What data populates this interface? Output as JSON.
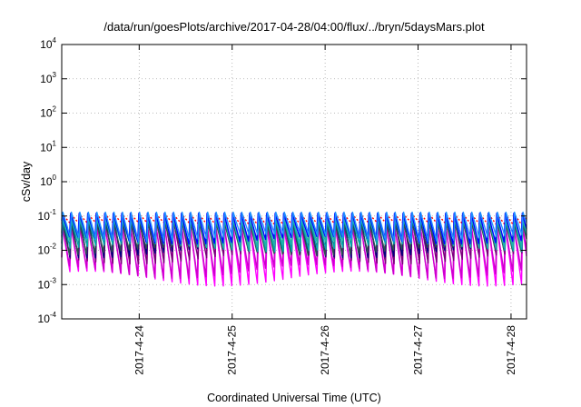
{
  "chart_data": {
    "type": "line",
    "title": "/data/run/goesPlots/archive/2017-04-28/04:00/flux/../bryn/5daysMars.plot",
    "xlabel": "Coordinated Universal Time (UTC)",
    "ylabel": "cSv/day",
    "yscale": "log",
    "ylim": [
      0.0001,
      10000
    ],
    "y_ticks": [
      {
        "base": "10",
        "exp": "-4",
        "value": 0.0001
      },
      {
        "base": "10",
        "exp": "-3",
        "value": 0.001
      },
      {
        "base": "10",
        "exp": "-2",
        "value": 0.01
      },
      {
        "base": "10",
        "exp": "-1",
        "value": 0.1
      },
      {
        "base": "10",
        "exp": "0",
        "value": 1
      },
      {
        "base": "10",
        "exp": "1",
        "value": 10
      },
      {
        "base": "10",
        "exp": "2",
        "value": 100
      },
      {
        "base": "10",
        "exp": "3",
        "value": 1000
      },
      {
        "base": "10",
        "exp": "4",
        "value": 10000
      }
    ],
    "xlim": [
      "2017-04-23 04:00",
      "2017-04-28 04:00"
    ],
    "x_ticks": [
      "2017-4-24",
      "2017-4-25",
      "2017-4-26",
      "2017-4-27",
      "2017-4-28"
    ],
    "grid": true,
    "pulse_period_hours": 2.2,
    "series": [
      {
        "color": "#ff0000",
        "peak": 0.11,
        "trough": 0.055,
        "style": "dotted"
      },
      {
        "color": "#ff00ff",
        "peak": 0.05,
        "trough": 0.0009
      },
      {
        "color": "#cc00cc",
        "peak": 0.06,
        "trough": 0.0015
      },
      {
        "color": "#7a007a",
        "peak": 0.08,
        "trough": 0.004
      },
      {
        "color": "#000080",
        "peak": 0.09,
        "trough": 0.006
      },
      {
        "color": "#2f4f4f",
        "peak": 0.07,
        "trough": 0.007
      },
      {
        "color": "#00aaaa",
        "peak": 0.08,
        "trough": 0.009
      },
      {
        "color": "#20b2aa",
        "peak": 0.09,
        "trough": 0.012
      },
      {
        "color": "#0000ff",
        "peak": 0.12,
        "trough": 0.015
      },
      {
        "color": "#1e90ff",
        "peak": 0.13,
        "trough": 0.018
      }
    ]
  }
}
